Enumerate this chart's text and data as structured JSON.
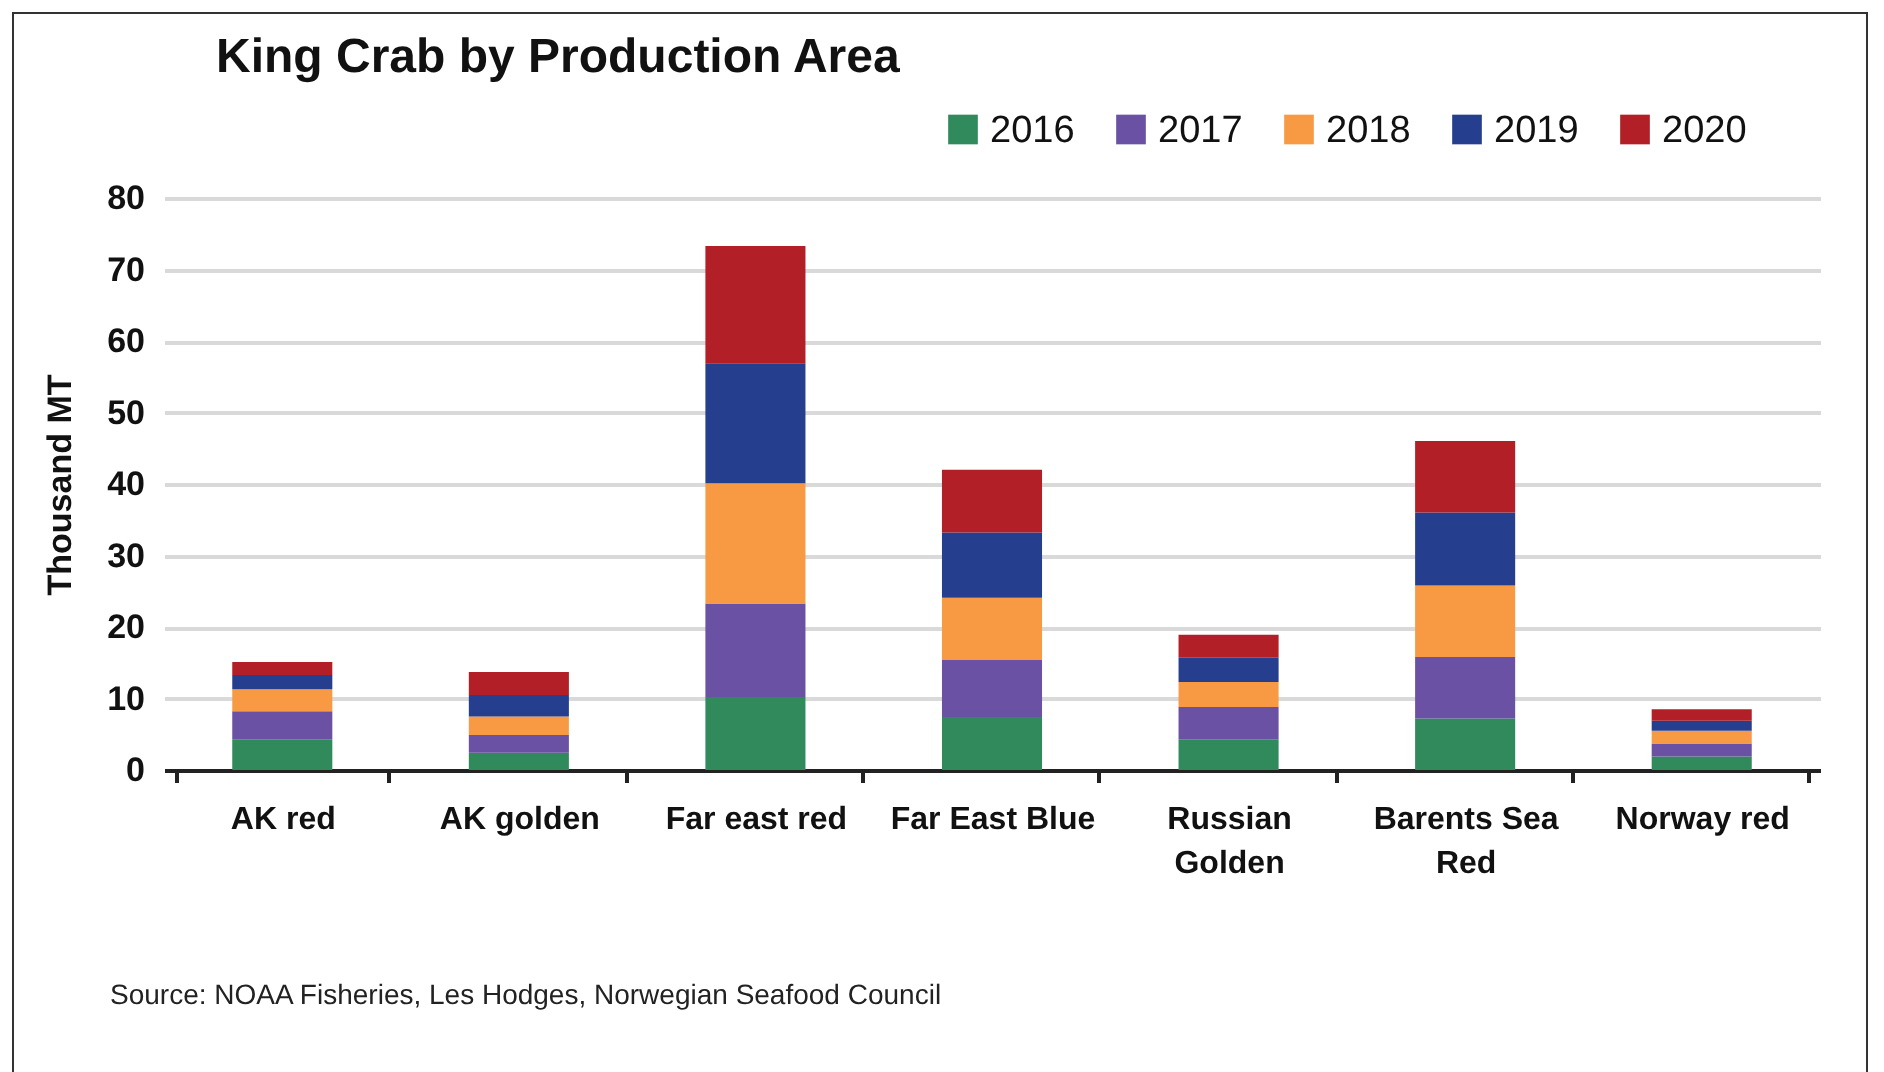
{
  "chart_data": {
    "type": "bar",
    "title": "King Crab by Production Area",
    "ylabel": "Thousand MT",
    "stacked": true,
    "legend": "top right",
    "grid": "y",
    "categories": [
      "AK red",
      "AK golden",
      "Far east red",
      "Far East Blue",
      "Russian Golden",
      "Barents Sea Red",
      "Norway red"
    ],
    "ylim": [
      0,
      80
    ],
    "yticks": [
      0,
      10,
      20,
      30,
      40,
      50,
      60,
      70,
      80
    ],
    "series": [
      {
        "name": "2016",
        "color": "#318a5c",
        "values": [
          4.3,
          2.4,
          10.2,
          7.4,
          4.3,
          7.2,
          1.9
        ]
      },
      {
        "name": "2017",
        "color": "#6a51a3",
        "values": [
          3.9,
          2.5,
          13.1,
          8.0,
          4.5,
          8.6,
          1.8
        ]
      },
      {
        "name": "2018",
        "color": "#f79a43",
        "values": [
          3.1,
          2.6,
          16.8,
          8.7,
          3.5,
          10.0,
          1.8
        ]
      },
      {
        "name": "2019",
        "color": "#253f8e",
        "values": [
          2.0,
          3.0,
          16.8,
          9.1,
          3.4,
          10.2,
          1.4
        ]
      },
      {
        "name": "2020",
        "color": "#b31f26",
        "values": [
          1.8,
          3.2,
          16.4,
          8.8,
          3.2,
          10.0,
          1.6
        ]
      }
    ],
    "annotations": [
      "Source: NOAA Fisheries, Les Hodges, Norwegian Seafood Council"
    ]
  }
}
